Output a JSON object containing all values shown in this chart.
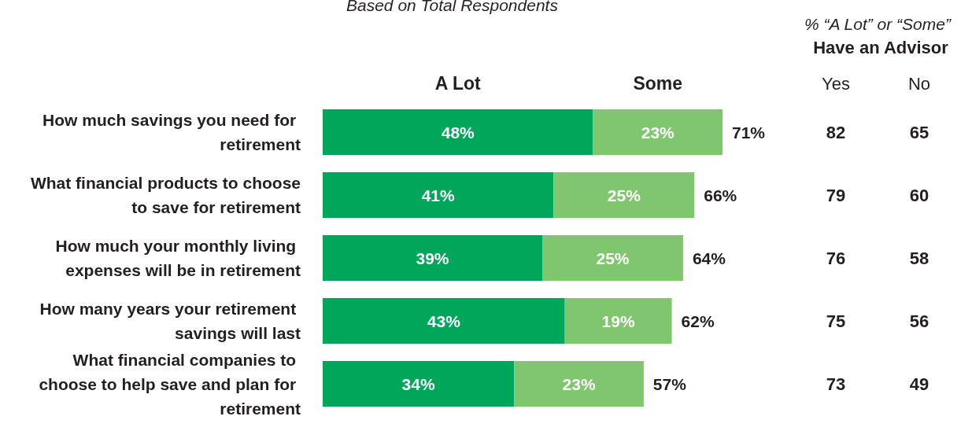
{
  "chart_data": {
    "type": "bar",
    "orientation": "horizontal",
    "stacked": true,
    "subtitle": "Based on Total Respondents",
    "categories": [
      "How much savings you need for retirement",
      "What financial products to choose to save for retirement",
      "How much your monthly living expenses will be in retirement",
      "How many years your retirement savings will last",
      "What financial companies to choose to help save and plan for retirement"
    ],
    "series": [
      {
        "name": "A Lot",
        "color": "#00a65a",
        "values": [
          48,
          41,
          39,
          43,
          34
        ],
        "value_labels": [
          "48%",
          "41%",
          "39%",
          "43%",
          "34%"
        ]
      },
      {
        "name": "Some",
        "color": "#80c66f",
        "values": [
          23,
          25,
          25,
          19,
          23
        ],
        "value_labels": [
          "23%",
          "25%",
          "25%",
          "19%",
          "23%"
        ]
      }
    ],
    "totals": [
      "71%",
      "66%",
      "64%",
      "62%",
      "57%"
    ],
    "tick_labels": false,
    "annotations": [
      "% “A Lot” or “Some”",
      "Have an Advisor",
      "Yes",
      "No",
      "82",
      "65",
      "79",
      "60",
      "76",
      "58",
      "75",
      "56",
      "73",
      "49"
    ]
  }
}
